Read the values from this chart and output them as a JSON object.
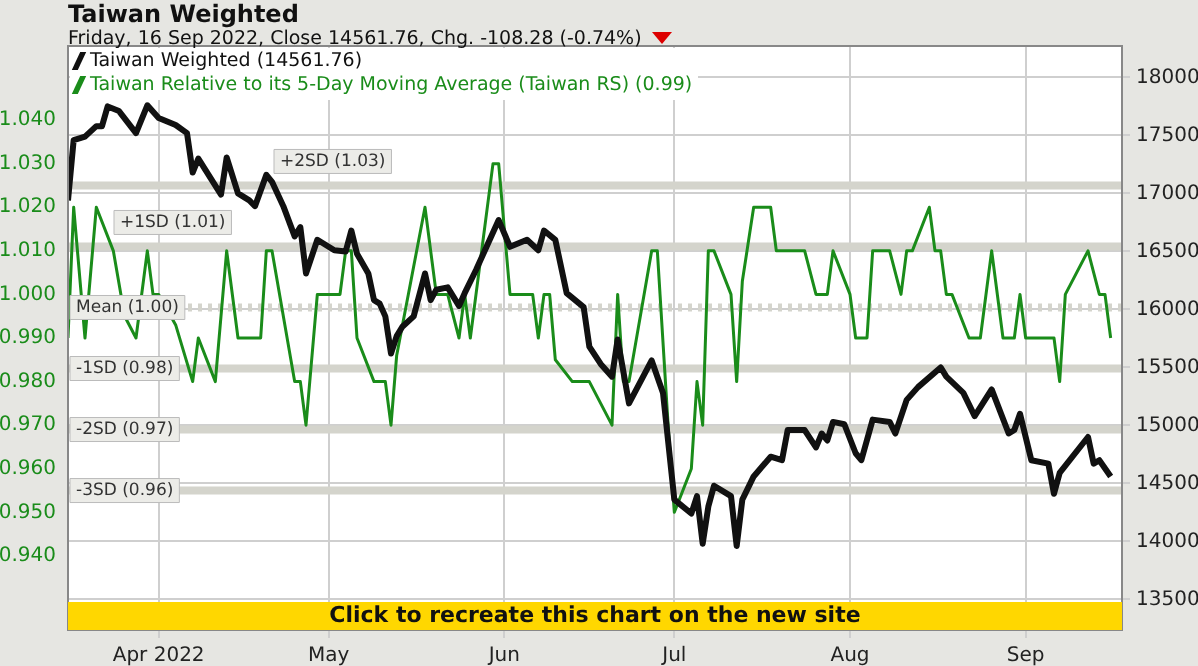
{
  "chart_data": {
    "type": "line",
    "title": "Taiwan Weighted",
    "subtitle": "Friday, 16 Sep 2022, Close 14561.76, Chg. -108.28 (-0.74%)",
    "legend": "top left",
    "grid": true,
    "xlim": [
      "2022-03-16",
      "2022-09-18"
    ],
    "xticks": [
      {
        "value": "2022-04-01",
        "label": "Apr 2022"
      },
      {
        "value": "2022-05-01",
        "label": "May"
      },
      {
        "value": "2022-06-01",
        "label": "Jun"
      },
      {
        "value": "2022-07-01",
        "label": "Jul"
      },
      {
        "value": "2022-08-01",
        "label": "Aug"
      },
      {
        "value": "2022-09-01",
        "label": "Sep"
      }
    ],
    "ylim": [
      0.923,
      1.057
    ],
    "yticks": [
      {
        "value": 0.94,
        "label": "0.940"
      },
      {
        "value": 0.95,
        "label": "0.950"
      },
      {
        "value": 0.96,
        "label": "0.960"
      },
      {
        "value": 0.97,
        "label": "0.970"
      },
      {
        "value": 0.98,
        "label": "0.980"
      },
      {
        "value": 0.99,
        "label": "0.990"
      },
      {
        "value": 1.0,
        "label": "1.000"
      },
      {
        "value": 1.01,
        "label": "1.010"
      },
      {
        "value": 1.02,
        "label": "1.020"
      },
      {
        "value": 1.03,
        "label": "1.030"
      },
      {
        "value": 1.04,
        "label": "1.040"
      }
    ],
    "y2lim": [
      13236,
      18271
    ],
    "y2ticks": [
      13500,
      14000,
      14500,
      15000,
      15500,
      16000,
      16500,
      17000,
      17500,
      18000
    ],
    "ref_lines": [
      {
        "axis": "y",
        "value": 1.025,
        "label": "+2SD (1.03)",
        "color": "#d4d4cc"
      },
      {
        "axis": "y",
        "value": 1.011,
        "label": "+1SD (1.01)",
        "color": "#d4d4cc"
      },
      {
        "axis": "y",
        "value": 0.997,
        "label": "Mean (1.00)",
        "color": "#d4d4cc",
        "line_style": "dotted"
      },
      {
        "axis": "y",
        "value": 0.983,
        "label": "-1SD (0.98)",
        "color": "#d4d4cc"
      },
      {
        "axis": "y",
        "value": 0.969,
        "label": "-2SD (0.97)",
        "color": "#d4d4cc"
      },
      {
        "axis": "y",
        "value": 0.955,
        "label": "-3SD (0.96)",
        "color": "#d4d4cc"
      }
    ],
    "annotations": [
      "Click to recreate this chart on the new site"
    ],
    "series": [
      {
        "name": "Taiwan Weighted (14561.76)",
        "color": "#111111",
        "axis": "y2",
        "x": [
          "2022-03-16",
          "2022-03-17",
          "2022-03-19",
          "2022-03-21",
          "2022-03-22",
          "2022-03-23",
          "2022-03-25",
          "2022-03-28",
          "2022-03-30",
          "2022-04-01",
          "2022-04-04",
          "2022-04-06",
          "2022-04-07",
          "2022-04-08",
          "2022-04-12",
          "2022-04-13",
          "2022-04-15",
          "2022-04-17",
          "2022-04-18",
          "2022-04-20",
          "2022-04-21",
          "2022-04-23",
          "2022-04-25",
          "2022-04-26",
          "2022-04-27",
          "2022-04-29",
          "2022-05-02",
          "2022-05-04",
          "2022-05-05",
          "2022-05-06",
          "2022-05-08",
          "2022-05-09",
          "2022-05-10",
          "2022-05-11",
          "2022-05-12",
          "2022-05-13",
          "2022-05-14",
          "2022-05-16",
          "2022-05-18",
          "2022-05-19",
          "2022-05-20",
          "2022-05-22",
          "2022-05-24",
          "2022-05-25",
          "2022-05-27",
          "2022-05-31",
          "2022-06-02",
          "2022-06-05",
          "2022-06-07",
          "2022-06-08",
          "2022-06-10",
          "2022-06-12",
          "2022-06-15",
          "2022-06-16",
          "2022-06-18",
          "2022-06-20",
          "2022-06-21",
          "2022-06-23",
          "2022-06-27",
          "2022-06-29",
          "2022-07-01",
          "2022-07-04",
          "2022-07-05",
          "2022-07-06",
          "2022-07-07",
          "2022-07-08",
          "2022-07-11",
          "2022-07-12",
          "2022-07-13",
          "2022-07-15",
          "2022-07-18",
          "2022-07-20",
          "2022-07-21",
          "2022-07-24",
          "2022-07-26",
          "2022-07-27",
          "2022-07-28",
          "2022-07-29",
          "2022-07-31",
          "2022-08-02",
          "2022-08-03",
          "2022-08-05",
          "2022-08-08",
          "2022-08-09",
          "2022-08-11",
          "2022-08-13",
          "2022-08-17",
          "2022-08-18",
          "2022-08-21",
          "2022-08-23",
          "2022-08-26",
          "2022-08-29",
          "2022-08-30",
          "2022-08-31",
          "2022-09-02",
          "2022-09-05",
          "2022-09-06",
          "2022-09-07",
          "2022-09-12",
          "2022-09-13",
          "2022-09-14",
          "2022-09-16"
        ],
        "values": [
          16940,
          17460,
          17490,
          17580,
          17580,
          17750,
          17710,
          17520,
          17760,
          17650,
          17590,
          17520,
          17180,
          17300,
          16990,
          17310,
          17000,
          16940,
          16890,
          17160,
          17100,
          16890,
          16630,
          16710,
          16310,
          16600,
          16510,
          16500,
          16680,
          16480,
          16310,
          16080,
          16050,
          15940,
          15620,
          15770,
          15850,
          15940,
          16310,
          16080,
          16170,
          16190,
          16030,
          16140,
          16340,
          16770,
          16540,
          16600,
          16510,
          16680,
          16600,
          16140,
          16020,
          15680,
          15530,
          15420,
          15740,
          15190,
          15560,
          15280,
          14360,
          14240,
          14390,
          13980,
          14300,
          14480,
          14390,
          13960,
          14360,
          14560,
          14730,
          14700,
          14960,
          14960,
          14810,
          14930,
          14870,
          15030,
          15010,
          14760,
          14700,
          15050,
          15030,
          14930,
          15220,
          15330,
          15500,
          15420,
          15280,
          15080,
          15310,
          14930,
          14960,
          15100,
          14700,
          14670,
          14410,
          14590,
          14900,
          14670,
          14700,
          14560
        ]
      },
      {
        "name": "Taiwan Relative to its 5-Day Moving Average (Taiwan RS) (0.99)",
        "color": "#1a8c1a",
        "axis": "y",
        "x": [
          "2022-03-16",
          "2022-03-17",
          "2022-03-19",
          "2022-03-21",
          "2022-03-24",
          "2022-03-26",
          "2022-03-28",
          "2022-03-30",
          "2022-03-31",
          "2022-04-01",
          "2022-04-04",
          "2022-04-07",
          "2022-04-08",
          "2022-04-11",
          "2022-04-13",
          "2022-04-15",
          "2022-04-19",
          "2022-04-20",
          "2022-04-21",
          "2022-04-25",
          "2022-04-26",
          "2022-04-27",
          "2022-04-29",
          "2022-05-03",
          "2022-05-04",
          "2022-05-05",
          "2022-05-06",
          "2022-05-09",
          "2022-05-11",
          "2022-05-12",
          "2022-05-13",
          "2022-05-18",
          "2022-05-20",
          "2022-05-22",
          "2022-05-24",
          "2022-05-25",
          "2022-05-26",
          "2022-05-27",
          "2022-05-30",
          "2022-05-31",
          "2022-06-02",
          "2022-06-06",
          "2022-06-07",
          "2022-06-08",
          "2022-06-09",
          "2022-06-10",
          "2022-06-13",
          "2022-06-14",
          "2022-06-16",
          "2022-06-18",
          "2022-06-20",
          "2022-06-21",
          "2022-06-22",
          "2022-06-23",
          "2022-06-27",
          "2022-06-28",
          "2022-06-30",
          "2022-07-01",
          "2022-07-04",
          "2022-07-05",
          "2022-07-06",
          "2022-07-07",
          "2022-07-08",
          "2022-07-11",
          "2022-07-12",
          "2022-07-13",
          "2022-07-15",
          "2022-07-18",
          "2022-07-19",
          "2022-07-24",
          "2022-07-26",
          "2022-07-28",
          "2022-07-29",
          "2022-08-01",
          "2022-08-02",
          "2022-08-04",
          "2022-08-05",
          "2022-08-08",
          "2022-08-10",
          "2022-08-11",
          "2022-08-12",
          "2022-08-15",
          "2022-08-16",
          "2022-08-17",
          "2022-08-18",
          "2022-08-19",
          "2022-08-22",
          "2022-08-24",
          "2022-08-26",
          "2022-08-28",
          "2022-08-30",
          "2022-08-31",
          "2022-09-01",
          "2022-09-06",
          "2022-09-07",
          "2022-09-08",
          "2022-09-12",
          "2022-09-14",
          "2022-09-15",
          "2022-09-16"
        ],
        "values": [
          0.99,
          1.02,
          0.99,
          1.02,
          1.01,
          0.995,
          0.99,
          1.01,
          1.0,
          1.0,
          0.993,
          0.98,
          0.99,
          0.98,
          1.01,
          0.99,
          0.99,
          1.01,
          1.01,
          0.98,
          0.98,
          0.97,
          1.0,
          1.0,
          1.01,
          1.01,
          0.99,
          0.98,
          0.98,
          0.97,
          0.986,
          1.02,
          1.0,
          1.0,
          0.99,
          1.0,
          0.99,
          1.0,
          1.03,
          1.03,
          1.0,
          1.0,
          0.99,
          1.0,
          1.0,
          0.985,
          0.98,
          0.98,
          0.98,
          0.975,
          0.97,
          1.0,
          0.98,
          0.98,
          1.01,
          1.01,
          0.968,
          0.95,
          0.96,
          0.98,
          0.97,
          1.01,
          1.01,
          1.0,
          0.98,
          1.003,
          1.02,
          1.02,
          1.01,
          1.01,
          1.0,
          1.0,
          1.01,
          1.0,
          0.99,
          0.99,
          1.01,
          1.01,
          1.0,
          1.01,
          1.01,
          1.02,
          1.01,
          1.01,
          1.0,
          1.0,
          0.99,
          0.99,
          1.01,
          0.99,
          0.99,
          1.0,
          0.99,
          0.99,
          0.98,
          1.0,
          1.01,
          1.0,
          1.0,
          0.99
        ]
      }
    ]
  }
}
